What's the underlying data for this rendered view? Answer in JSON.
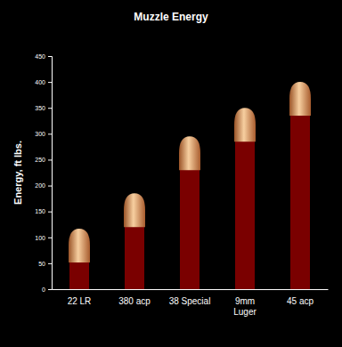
{
  "chart_data": {
    "type": "bar",
    "title": "Muzzle Energy",
    "y_label": "Energy, ft lbs.",
    "categories": [
      "22 LR",
      "380 acp",
      "38 Special",
      "9mm\nLuger",
      "45 acp"
    ],
    "values": [
      117,
      185,
      295,
      350,
      400
    ],
    "color": "#7a0000",
    "ylim": [
      0,
      450
    ],
    "yticks": [
      0,
      50,
      100,
      150,
      200,
      250,
      300,
      350,
      400,
      450
    ]
  }
}
